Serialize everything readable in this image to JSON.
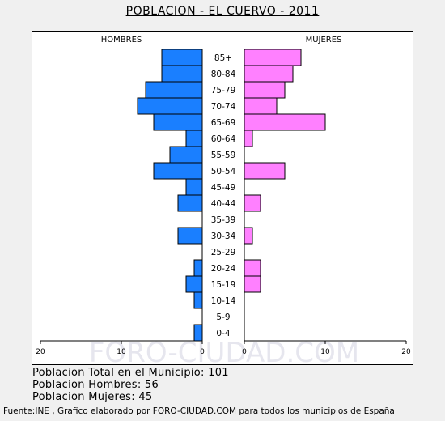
{
  "title": "POBLACION - EL CUERVO - 2011",
  "watermark": "FORO-CIUDAD.COM",
  "chart_data": {
    "type": "bar",
    "subtype": "population-pyramid",
    "left_label": "HOMBRES",
    "right_label": "MUJERES",
    "categories": [
      "85+",
      "80-84",
      "75-79",
      "70-74",
      "65-69",
      "60-64",
      "55-59",
      "50-54",
      "45-49",
      "40-44",
      "35-39",
      "30-34",
      "25-29",
      "20-24",
      "15-19",
      "10-14",
      "5-9",
      "0-4"
    ],
    "series": [
      {
        "name": "HOMBRES",
        "color": "#1a7fff",
        "values": [
          5,
          5,
          7,
          8,
          6,
          2,
          4,
          6,
          2,
          3,
          0,
          3,
          0,
          1,
          2,
          1,
          0,
          1
        ]
      },
      {
        "name": "MUJERES",
        "color": "#ff80ff",
        "values": [
          7,
          6,
          5,
          4,
          10,
          1,
          0,
          5,
          0,
          2,
          0,
          1,
          0,
          2,
          2,
          0,
          0,
          0
        ]
      }
    ],
    "x_ticks_left": [
      "20",
      "10",
      "0"
    ],
    "x_ticks_right": [
      "0",
      "10",
      "20"
    ],
    "xlim": [
      0,
      20
    ]
  },
  "summary": {
    "total": "Poblacion Total en el Municipio: 101",
    "men": "Poblacion Hombres: 56",
    "women": "Poblacion Mujeres: 45"
  },
  "footer": "Fuente:INE , Grafico elaborado por FORO-CIUDAD.COM para todos los municipios de España"
}
